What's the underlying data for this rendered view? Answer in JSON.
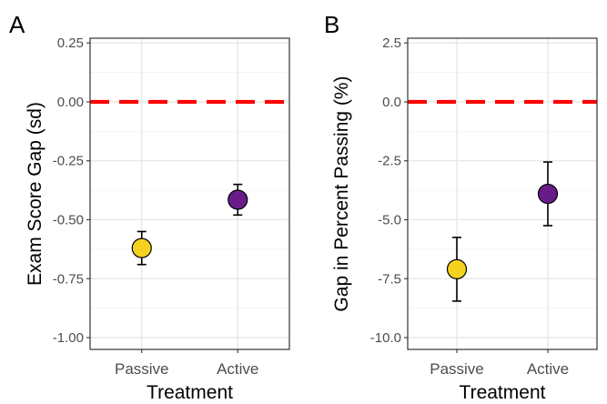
{
  "chart_data": [
    {
      "panel_label": "A",
      "type": "scatter",
      "subtype": "point-with-error-bars",
      "xlabel": "Treatment",
      "ylabel": "Exam Score Gap (sd)",
      "categories": [
        "Passive",
        "Active"
      ],
      "values": [
        -0.62,
        -0.415
      ],
      "error_low": [
        -0.69,
        -0.48
      ],
      "error_high": [
        -0.55,
        -0.35
      ],
      "point_colors": [
        "#f5d21f",
        "#6a1b8a"
      ],
      "reference_line": {
        "y": 0,
        "color": "#ff0000",
        "style": "dashed"
      },
      "ylim": [
        -1.05,
        0.27
      ],
      "yticks": [
        0.25,
        0,
        -0.25,
        -0.5,
        -0.75,
        -1
      ],
      "ytick_labels": [
        "0.25",
        "0.00",
        "-0.25",
        "-0.50",
        "-0.75",
        "-1.00"
      ],
      "grid": true
    },
    {
      "panel_label": "B",
      "type": "scatter",
      "subtype": "point-with-error-bars",
      "xlabel": "Treatment",
      "ylabel": "Gap in Percent Passing (%)",
      "categories": [
        "Passive",
        "Active"
      ],
      "values": [
        -7.1,
        -3.9
      ],
      "error_low": [
        -8.45,
        -5.25
      ],
      "error_high": [
        -5.75,
        -2.55
      ],
      "point_colors": [
        "#f5d21f",
        "#6a1b8a"
      ],
      "reference_line": {
        "y": 0,
        "color": "#ff0000",
        "style": "dashed"
      },
      "ylim": [
        -10.5,
        2.7
      ],
      "yticks": [
        2.5,
        0,
        -2.5,
        -5,
        -7.5,
        -10
      ],
      "ytick_labels": [
        "2.5",
        "0.0",
        "-2.5",
        "-5.0",
        "-7.5",
        "-10.0"
      ],
      "grid": true
    }
  ]
}
